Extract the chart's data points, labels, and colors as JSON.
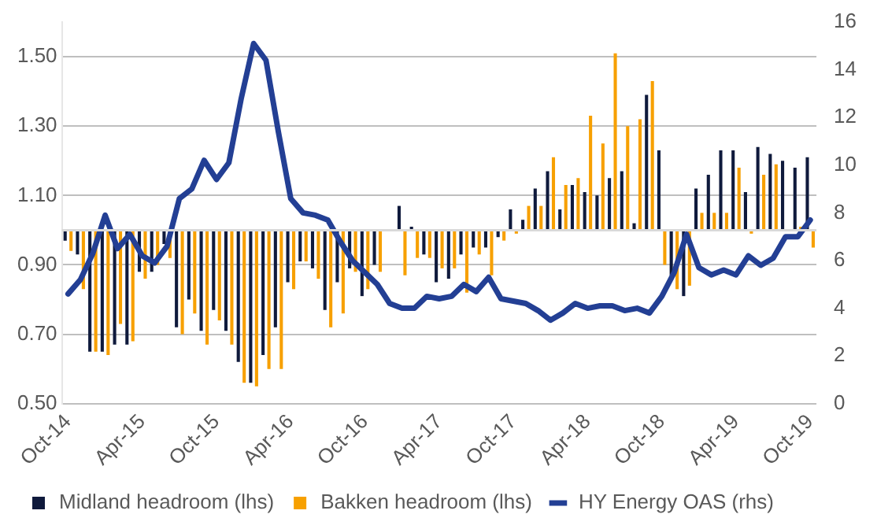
{
  "chart_data": {
    "type": "bar",
    "categories": [
      "Oct-14",
      null,
      null,
      null,
      null,
      null,
      "Apr-15",
      null,
      null,
      null,
      null,
      null,
      "Oct-15",
      null,
      null,
      null,
      null,
      null,
      "Apr-16",
      null,
      null,
      null,
      null,
      null,
      "Oct-16",
      null,
      null,
      null,
      null,
      null,
      "Apr-17",
      null,
      null,
      null,
      null,
      null,
      "Oct-17",
      null,
      null,
      null,
      null,
      null,
      "Apr-18",
      null,
      null,
      null,
      null,
      null,
      "Oct-18",
      null,
      null,
      null,
      null,
      null,
      "Apr-19",
      null,
      null,
      null,
      null,
      null,
      "Oct-19"
    ],
    "series": [
      {
        "name": "Midland headroom (lhs)",
        "color": "#0f1a3c",
        "base": [
          1,
          1,
          1,
          1,
          1,
          1,
          1,
          1,
          1,
          1,
          1,
          1,
          1,
          1,
          1,
          1,
          1,
          1,
          1,
          1,
          1,
          1,
          1,
          1,
          1,
          1,
          null,
          1,
          1,
          1,
          1,
          1,
          1,
          1,
          1,
          1,
          1,
          1,
          1,
          1,
          1,
          1,
          1,
          1,
          1,
          1,
          1,
          1,
          1,
          1,
          1,
          1,
          1,
          1,
          1,
          1,
          1,
          1,
          1,
          1,
          1
        ],
        "values": [
          -0.03,
          -0.07,
          -0.35,
          -0.35,
          -0.33,
          -0.33,
          -0.12,
          -0.12,
          -0.04,
          -0.28,
          -0.2,
          -0.29,
          -0.23,
          -0.29,
          -0.38,
          -0.44,
          -0.36,
          -0.28,
          -0.15,
          -0.09,
          -0.11,
          -0.23,
          -0.15,
          -0.11,
          -0.19,
          -0.1,
          null,
          0.07,
          0.01,
          -0.07,
          -0.15,
          -0.14,
          -0.07,
          -0.05,
          -0.05,
          -0.02,
          0.06,
          0.03,
          0.12,
          0.17,
          0.06,
          0.13,
          0.11,
          0.1,
          0.15,
          0.17,
          0.02,
          0.39,
          0.23,
          -0.13,
          -0.19,
          0.12,
          0.16,
          0.23,
          0.23,
          0.11,
          0.24,
          0.22,
          0.2,
          0.18,
          0.21
        ]
      },
      {
        "name": "Bakken headroom (lhs)",
        "color": "#f7a000",
        "base": [
          1,
          1,
          1,
          1,
          1,
          1,
          1,
          1,
          1,
          1,
          1,
          1,
          1,
          1,
          1,
          1,
          1,
          1,
          1,
          1,
          1,
          1,
          1,
          1,
          1,
          1,
          null,
          1,
          1,
          1,
          1,
          1,
          1,
          1,
          1,
          1,
          1,
          1,
          1,
          1,
          1,
          1,
          1,
          1,
          1,
          1,
          1,
          1,
          1,
          1,
          1,
          1,
          1,
          1,
          1,
          1,
          1,
          1,
          null,
          1,
          1
        ],
        "values": [
          -0.06,
          -0.17,
          -0.35,
          -0.36,
          -0.27,
          -0.32,
          -0.14,
          -0.1,
          -0.08,
          -0.3,
          -0.24,
          -0.33,
          -0.26,
          -0.33,
          -0.44,
          -0.45,
          -0.4,
          -0.4,
          -0.17,
          -0.09,
          -0.14,
          -0.28,
          -0.24,
          -0.12,
          -0.17,
          -0.12,
          null,
          -0.13,
          -0.08,
          -0.08,
          -0.11,
          -0.11,
          -0.18,
          -0.07,
          -0.13,
          -0.03,
          -0.01,
          0.07,
          0.07,
          0.21,
          0.13,
          0.15,
          0.33,
          0.25,
          0.51,
          0.3,
          0.32,
          0.43,
          -0.1,
          -0.17,
          -0.16,
          0.05,
          0.05,
          0.05,
          0.18,
          -0.01,
          0.16,
          0.19,
          null,
          0.01,
          -0.05
        ]
      },
      {
        "name": "HY Energy OAS (rhs)",
        "type": "line",
        "axis": "y2",
        "color": "#233f94",
        "values": [
          4.6,
          5.2,
          6.3,
          7.9,
          6.5,
          7.1,
          6.2,
          5.9,
          6.6,
          8.6,
          9.0,
          10.2,
          9.4,
          10.1,
          12.8,
          15.1,
          14.4,
          11.4,
          8.6,
          8.0,
          7.9,
          7.7,
          6.8,
          6.0,
          5.5,
          5.0,
          4.2,
          4.0,
          4.0,
          4.5,
          4.4,
          4.5,
          5.0,
          4.7,
          5.3,
          4.4,
          4.3,
          4.2,
          3.9,
          3.5,
          3.8,
          4.2,
          4.0,
          4.1,
          4.1,
          3.9,
          4.0,
          3.8,
          4.5,
          5.5,
          7.1,
          5.7,
          5.4,
          5.6,
          5.4,
          6.2,
          5.8,
          6.1,
          7.0,
          7.0,
          7.7
        ]
      }
    ],
    "ylim": [
      0.5,
      1.6
    ],
    "yticks": [
      {
        "value": 0.5,
        "label": "0.50"
      },
      {
        "value": 0.7,
        "label": "0.70"
      },
      {
        "value": 0.9,
        "label": "0.90"
      },
      {
        "value": 1.1,
        "label": "1.10"
      },
      {
        "value": 1.3,
        "label": "1.30"
      },
      {
        "value": 1.5,
        "label": "1.50"
      }
    ],
    "y2lim": [
      0,
      16
    ],
    "y2ticks": [
      0,
      2,
      4,
      6,
      8,
      10,
      12,
      14,
      16
    ],
    "ref_lines": [
      {
        "axis": "y",
        "value": 1,
        "color": "#d9d9d9"
      }
    ],
    "grid": "y",
    "legend": "bottom",
    "marker": "none",
    "line_style": "solid"
  }
}
